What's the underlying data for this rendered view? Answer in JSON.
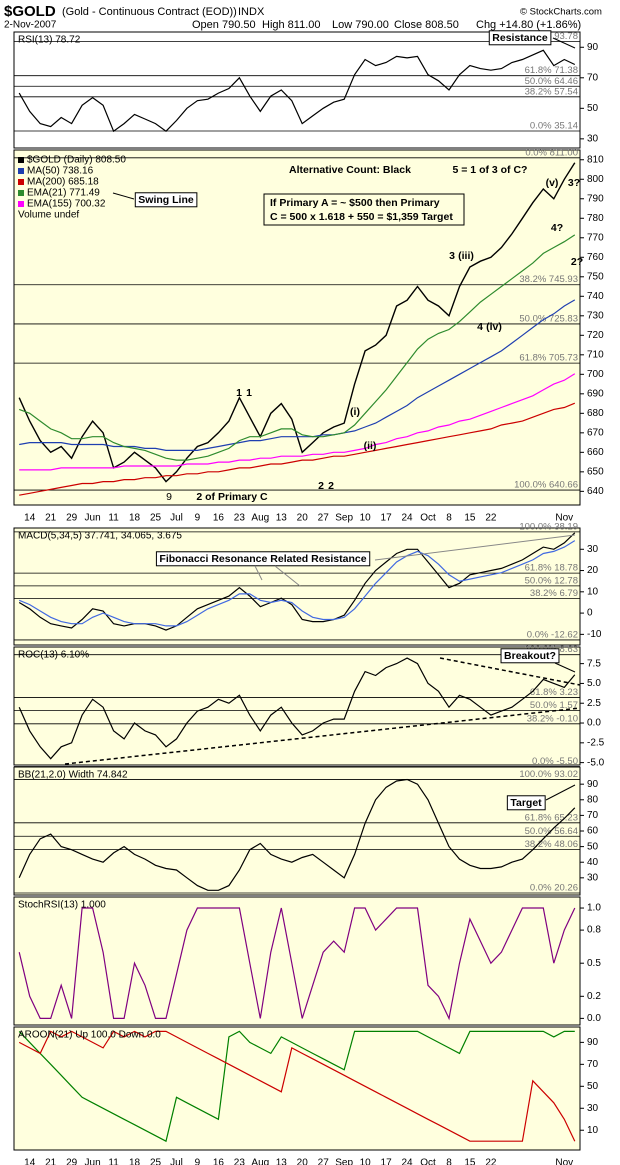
{
  "header": {
    "symbol": "$GOLD",
    "name": "(Gold - Continuous Contract (EOD))",
    "exchange": "INDX",
    "date": "2-Nov-2007",
    "open": "Open 790.50",
    "high": "High 811.00",
    "low": "Low 790.00",
    "close": "Close 808.50",
    "change": "Chg +14.80 (+1.86%)",
    "credit": "© StockCharts.com"
  },
  "chart_data": [
    {
      "type": "line",
      "title": "RSI(13) 78.72",
      "ylim": [
        24,
        100
      ],
      "yticks": [
        30,
        50,
        70,
        90
      ],
      "levels": [
        {
          "value": 93.78,
          "label": "100.0% 93.78"
        },
        {
          "value": 71.38,
          "label": "61.8% 71.38"
        },
        {
          "value": 64.46,
          "label": "50.0% 64.46"
        },
        {
          "value": 57.54,
          "label": "38.2% 57.54"
        },
        {
          "value": 35.14,
          "label": "0.0% 35.14"
        }
      ],
      "series": [
        {
          "color": "#000000",
          "values": [
            60,
            48,
            40,
            38,
            44,
            40,
            52,
            57,
            52,
            35,
            40,
            46,
            43,
            40,
            35,
            42,
            50,
            55,
            56,
            60,
            63,
            70,
            58,
            48,
            58,
            62,
            55,
            40,
            45,
            50,
            54,
            56,
            72,
            82,
            78,
            80,
            84,
            83,
            84,
            72,
            68,
            62,
            72,
            78,
            76,
            75,
            76,
            80,
            82,
            85,
            88,
            78,
            82,
            78.72
          ]
        }
      ],
      "annotations": [
        "Resistance"
      ]
    },
    {
      "type": "line",
      "ylim": [
        633,
        815
      ],
      "yticks": [
        640,
        650,
        660,
        670,
        680,
        690,
        700,
        710,
        720,
        730,
        740,
        750,
        760,
        770,
        780,
        790,
        800,
        810
      ],
      "categories": [
        null,
        "14",
        null,
        "21",
        null,
        "29",
        null,
        "Jun",
        null,
        "11",
        null,
        "18",
        null,
        "25",
        null,
        "Jul",
        null,
        "9",
        null,
        "16",
        null,
        "23",
        null,
        "Aug",
        null,
        "13",
        null,
        "20",
        null,
        "27",
        null,
        "Sep",
        null,
        "10",
        null,
        "17",
        null,
        "24",
        null,
        "Oct",
        null,
        "8",
        null,
        "15",
        null,
        "22",
        null,
        null,
        null,
        null,
        null,
        null,
        "Nov",
        null
      ],
      "levels": [
        {
          "value": 811,
          "label": "0.0% 811.00"
        },
        {
          "value": 745.93,
          "label": "38.2% 745.93"
        },
        {
          "value": 725.83,
          "label": "50.0% 725.83"
        },
        {
          "value": 705.73,
          "label": "61.8% 705.73"
        },
        {
          "value": 640.66,
          "label": "100.0% 640.66"
        }
      ],
      "volume_label": "Volume undef",
      "series": [
        {
          "name": "$GOLD (Daily) 808.50",
          "color": "#000000",
          "values": [
            688,
            676,
            666,
            660,
            663,
            657,
            668,
            676,
            670,
            652,
            655,
            660,
            656,
            652,
            645,
            650,
            657,
            663,
            665,
            670,
            676,
            688,
            678,
            668,
            680,
            685,
            677,
            660,
            665,
            670,
            673,
            675,
            695,
            712,
            715,
            720,
            735,
            738,
            745,
            738,
            735,
            730,
            745,
            755,
            758,
            760,
            765,
            772,
            780,
            788,
            795,
            790,
            800,
            808.5
          ]
        },
        {
          "name": "MA(50) 738.16",
          "color": "#1f3fb0",
          "values": [
            664,
            665,
            665,
            665,
            665,
            664,
            664,
            664,
            664,
            663,
            663,
            663,
            662,
            662,
            661,
            661,
            661,
            661,
            662,
            663,
            664,
            665,
            666,
            666,
            667,
            668,
            668,
            668,
            668,
            669,
            669,
            670,
            671,
            673,
            675,
            678,
            681,
            684,
            688,
            691,
            694,
            697,
            700,
            703,
            706,
            709,
            712,
            716,
            720,
            724,
            728,
            731,
            735,
            738.16
          ]
        },
        {
          "name": "MA(200) 685.18",
          "color": "#cc0000",
          "values": [
            638,
            639,
            640,
            641,
            642,
            643,
            644,
            644,
            645,
            645,
            646,
            646,
            647,
            647,
            648,
            648,
            649,
            649,
            650,
            650,
            651,
            652,
            652,
            653,
            654,
            654,
            655,
            656,
            656,
            657,
            658,
            658,
            659,
            660,
            661,
            662,
            663,
            664,
            665,
            666,
            667,
            668,
            669,
            670,
            671,
            672,
            674,
            675,
            676,
            678,
            680,
            682,
            683,
            685.18
          ]
        },
        {
          "name": "EMA(21) 771.49",
          "color": "#2e8b2e",
          "values": [
            682,
            680,
            676,
            672,
            670,
            667,
            667,
            668,
            668,
            665,
            663,
            662,
            661,
            659,
            657,
            656,
            656,
            657,
            658,
            660,
            662,
            666,
            668,
            668,
            670,
            672,
            672,
            669,
            668,
            668,
            669,
            670,
            674,
            680,
            686,
            692,
            699,
            706,
            713,
            718,
            721,
            723,
            727,
            732,
            737,
            741,
            745,
            749,
            753,
            757,
            762,
            765,
            768,
            771.49
          ]
        },
        {
          "name": "EMA(155) 700.32",
          "color": "#ff00ff",
          "values": [
            651,
            651,
            651,
            651,
            652,
            652,
            652,
            652,
            652,
            652,
            653,
            653,
            653,
            653,
            653,
            653,
            654,
            654,
            654,
            655,
            655,
            656,
            656,
            657,
            657,
            658,
            658,
            658,
            659,
            659,
            660,
            660,
            661,
            662,
            664,
            665,
            667,
            668,
            670,
            671,
            673,
            674,
            676,
            677,
            679,
            681,
            683,
            685,
            687,
            689,
            692,
            695,
            697,
            700.32
          ]
        }
      ],
      "annotations": [
        "Alternative Count: Black",
        "5 = 1 of 3 of C?",
        "(v)",
        "3?",
        "4?",
        "2?",
        "3",
        "(iii)",
        "4",
        "(iv)",
        "Swing Line",
        "If Primary A = ~ $500 then Primary",
        "C = 500 x 1.618 + 550 = $1,359 Target",
        "1",
        "1",
        "(i)",
        "(ii)",
        "2",
        "2",
        "9",
        "2 of Primary C"
      ]
    },
    {
      "type": "line",
      "title": "MACD(5,34,5) 37.741, 34.065, 3.675",
      "ylim": [
        -15,
        40
      ],
      "yticks": [
        -10,
        0,
        10,
        20,
        30
      ],
      "levels": [
        {
          "value": 38.19,
          "label": "100.0% 38.19"
        },
        {
          "value": 18.78,
          "label": "61.8% 18.78"
        },
        {
          "value": 12.78,
          "label": "50.0% 12.78"
        },
        {
          "value": 6.79,
          "label": "38.2% 6.79"
        },
        {
          "value": -12.62,
          "label": "0.0% -12.62"
        }
      ],
      "series": [
        {
          "color": "#000000",
          "values": [
            5,
            2,
            -2,
            -5,
            -6,
            -7,
            -3,
            2,
            1,
            -5,
            -6,
            -5,
            -5,
            -6,
            -8,
            -6,
            -2,
            2,
            4,
            6,
            8,
            12,
            8,
            3,
            5,
            7,
            4,
            -3,
            -4,
            -4,
            -3,
            -1,
            6,
            14,
            20,
            24,
            28,
            30,
            30,
            24,
            18,
            12,
            14,
            18,
            19,
            20,
            21,
            23,
            25,
            28,
            31,
            30,
            33,
            37.741
          ]
        },
        {
          "color": "#4169e1",
          "values": [
            6,
            4,
            1,
            -2,
            -4,
            -5,
            -5,
            -2,
            0,
            -2,
            -4,
            -5,
            -5,
            -5,
            -6,
            -6,
            -4,
            -1,
            2,
            4,
            6,
            9,
            9,
            6,
            5,
            6,
            5,
            1,
            -2,
            -3,
            -3,
            -2,
            2,
            8,
            14,
            19,
            24,
            27,
            29,
            27,
            23,
            18,
            15,
            16,
            17,
            18,
            19,
            21,
            23,
            25,
            28,
            29,
            31,
            34.065
          ]
        }
      ],
      "annotations": [
        "Fibonacci Resonance Related Resistance"
      ]
    },
    {
      "type": "line",
      "title": "ROC(13) 6.10%",
      "ylim": [
        -5.3,
        9.6
      ],
      "yticks": [
        {
          "value": -5,
          "label": "-5.0"
        },
        -2.5,
        {
          "value": 0,
          "label": "0.0"
        },
        2.5,
        {
          "value": 5,
          "label": "5.0"
        },
        7.5
      ],
      "levels": [
        {
          "value": 8.63,
          "label": "100.0% 8.63"
        },
        {
          "value": 3.23,
          "label": "61.8% 3.23"
        },
        {
          "value": 1.57,
          "label": "50.0% 1.57"
        },
        {
          "value": -0.1,
          "label": "38.2% -0.10"
        },
        {
          "value": -5.5,
          "label": "0.0% -5.50"
        }
      ],
      "series": [
        {
          "color": "#000000",
          "values": [
            2,
            -1,
            -3,
            -4.5,
            -3,
            -2.5,
            1,
            3,
            2,
            -1,
            -2,
            0,
            -1,
            -1.5,
            -3,
            -2,
            0,
            1.5,
            2,
            3,
            2.5,
            3.5,
            1,
            -1,
            1,
            2,
            0,
            -1.5,
            -1,
            0,
            0.5,
            0.5,
            4,
            6.5,
            6,
            7,
            7.5,
            8.2,
            7.5,
            5,
            4,
            2,
            3.5,
            3,
            2,
            1,
            1.5,
            2,
            3,
            4,
            5.5,
            5,
            4.5,
            6.1
          ]
        }
      ],
      "annotations": [
        "Breakout?"
      ]
    },
    {
      "type": "line",
      "title": "BB(21,2.0) Width 74.842",
      "ylim": [
        19,
        101
      ],
      "yticks": [
        30,
        40,
        50,
        60,
        70,
        80,
        90
      ],
      "levels": [
        {
          "value": 93.02,
          "label": "100.0% 93.02"
        },
        {
          "value": 65.23,
          "label": "61.8% 65.23"
        },
        {
          "value": 56.64,
          "label": "50.0% 56.64"
        },
        {
          "value": 48.06,
          "label": "38.2% 48.06"
        },
        {
          "value": 20.26,
          "label": "0.0% 20.26"
        }
      ],
      "series": [
        {
          "color": "#000000",
          "values": [
            30,
            45,
            55,
            58,
            50,
            48,
            45,
            42,
            40,
            46,
            50,
            45,
            42,
            38,
            36,
            35,
            30,
            25,
            22,
            22,
            25,
            35,
            48,
            52,
            45,
            42,
            40,
            43,
            45,
            40,
            35,
            30,
            45,
            65,
            80,
            88,
            92,
            93,
            90,
            80,
            65,
            50,
            42,
            38,
            36,
            36,
            37,
            40,
            42,
            48,
            55,
            62,
            68,
            74.842
          ]
        }
      ],
      "annotations": [
        "Target"
      ]
    },
    {
      "type": "line",
      "title": "StochRSI(13) 1.000",
      "ylim": [
        -0.06,
        1.1
      ],
      "yticks": [
        {
          "value": 0,
          "label": "0.0"
        },
        0.2,
        0.5,
        0.8,
        {
          "value": 1,
          "label": "1.0"
        }
      ],
      "series": [
        {
          "color": "#800080",
          "values": [
            0.6,
            0.2,
            0,
            0,
            0.3,
            0,
            1,
            1,
            0.6,
            0,
            0,
            0.5,
            0.3,
            0,
            0,
            0.4,
            0.8,
            1,
            1,
            1,
            1,
            1,
            0.5,
            0,
            0.6,
            1,
            0.5,
            0,
            0.3,
            0.6,
            0.7,
            0.6,
            1,
            1,
            0.8,
            0.9,
            1,
            1,
            1,
            0.3,
            0.2,
            0,
            0.5,
            0.9,
            0.7,
            0.5,
            0.6,
            0.8,
            1,
            1,
            1,
            0.5,
            0.8,
            1
          ]
        }
      ]
    },
    {
      "type": "line",
      "title": "AROON(21) Up 100.0 Down 0.0",
      "ylim": [
        -8,
        104
      ],
      "yticks": [
        10,
        30,
        50,
        70,
        90
      ],
      "categories": [
        null,
        "14",
        null,
        "21",
        null,
        "29",
        null,
        "Jun",
        null,
        "11",
        null,
        "18",
        null,
        "25",
        null,
        "Jul",
        null,
        "9",
        null,
        "16",
        null,
        "23",
        null,
        "Aug",
        null,
        "13",
        null,
        "20",
        null,
        "27",
        null,
        "Sep",
        null,
        "10",
        null,
        "17",
        null,
        "24",
        null,
        "Oct",
        null,
        "8",
        null,
        "15",
        null,
        "22",
        null,
        null,
        null,
        null,
        null,
        null,
        "Nov",
        null
      ],
      "series": [
        {
          "color": "#008000",
          "values": [
            100,
            90,
            80,
            70,
            60,
            50,
            40,
            35,
            30,
            25,
            20,
            15,
            10,
            5,
            0,
            40,
            35,
            30,
            25,
            20,
            95,
            100,
            90,
            85,
            80,
            95,
            90,
            85,
            80,
            75,
            70,
            65,
            100,
            100,
            100,
            100,
            100,
            100,
            100,
            95,
            90,
            85,
            80,
            100,
            100,
            100,
            100,
            100,
            100,
            100,
            100,
            95,
            100,
            100
          ]
        },
        {
          "color": "#cc0000",
          "values": [
            90,
            85,
            80,
            100,
            95,
            100,
            95,
            90,
            85,
            100,
            95,
            100,
            95,
            100,
            100,
            95,
            90,
            85,
            80,
            75,
            70,
            65,
            60,
            55,
            50,
            45,
            85,
            80,
            75,
            70,
            65,
            60,
            55,
            50,
            45,
            40,
            35,
            30,
            25,
            20,
            15,
            10,
            5,
            0,
            0,
            0,
            0,
            0,
            0,
            55,
            45,
            35,
            20,
            0
          ]
        }
      ]
    }
  ]
}
